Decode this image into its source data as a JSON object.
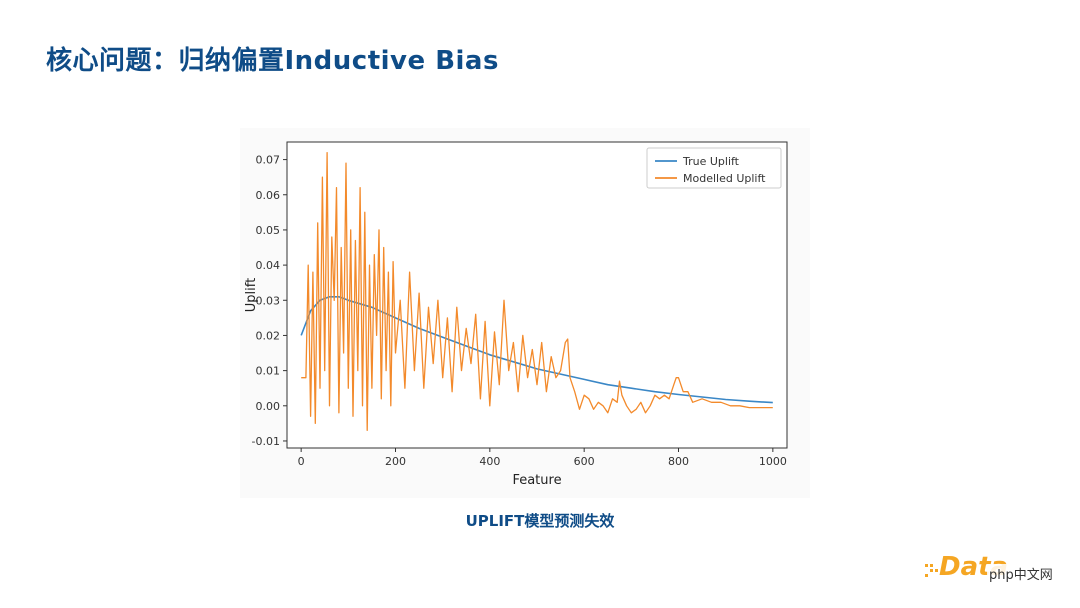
{
  "slide": {
    "title": "核心问题：归纳偏置Inductive Bias",
    "caption": "UPLIFT模型预测失效"
  },
  "brand": {
    "logo_text": "Data",
    "watermark_text": "php中文网"
  },
  "colors": {
    "title": "#0f4c87",
    "true_uplift": "#3a87c6",
    "modelled_uplift": "#f38a2b",
    "brand": "#f5a623"
  },
  "chart_data": {
    "type": "line",
    "xlabel": "Feature",
    "ylabel": "Uplift",
    "xlim": [
      -30,
      1030
    ],
    "ylim": [
      -0.012,
      0.075
    ],
    "xticks": [
      0,
      200,
      400,
      600,
      800,
      1000
    ],
    "yticks": [
      -0.01,
      0.0,
      0.01,
      0.02,
      0.03,
      0.04,
      0.05,
      0.06,
      0.07
    ],
    "ytick_labels": [
      "-0.01",
      "0.00",
      "0.01",
      "0.02",
      "0.03",
      "0.04",
      "0.05",
      "0.06",
      "0.07"
    ],
    "grid": false,
    "legend_position": "top-right",
    "series": [
      {
        "name": "True Uplift",
        "color": "#3a87c6",
        "x": [
          0,
          20,
          40,
          60,
          80,
          100,
          150,
          200,
          250,
          300,
          350,
          400,
          450,
          500,
          550,
          600,
          650,
          700,
          750,
          800,
          850,
          900,
          950,
          1000
        ],
        "y": [
          0.02,
          0.027,
          0.03,
          0.031,
          0.031,
          0.03,
          0.028,
          0.025,
          0.022,
          0.0195,
          0.017,
          0.0145,
          0.0125,
          0.0105,
          0.009,
          0.0075,
          0.006,
          0.005,
          0.004,
          0.0032,
          0.0025,
          0.0018,
          0.0013,
          0.0009
        ]
      },
      {
        "name": "Modelled Uplift",
        "color": "#f38a2b",
        "x": [
          0,
          10,
          15,
          20,
          25,
          30,
          35,
          40,
          45,
          50,
          55,
          60,
          65,
          70,
          75,
          80,
          85,
          90,
          95,
          100,
          105,
          110,
          115,
          120,
          125,
          130,
          135,
          140,
          145,
          150,
          155,
          160,
          165,
          170,
          175,
          180,
          185,
          190,
          195,
          200,
          210,
          220,
          230,
          240,
          250,
          260,
          270,
          280,
          290,
          300,
          310,
          320,
          330,
          340,
          350,
          360,
          370,
          380,
          390,
          400,
          410,
          420,
          430,
          440,
          450,
          460,
          470,
          480,
          490,
          500,
          510,
          520,
          530,
          540,
          550,
          560,
          565,
          570,
          580,
          590,
          600,
          610,
          620,
          630,
          640,
          650,
          660,
          670,
          675,
          680,
          690,
          700,
          710,
          720,
          730,
          740,
          750,
          760,
          770,
          780,
          790,
          795,
          800,
          810,
          820,
          830,
          850,
          870,
          890,
          910,
          930,
          950,
          970,
          1000
        ],
        "y": [
          0.008,
          0.008,
          0.04,
          -0.003,
          0.038,
          -0.005,
          0.052,
          0.005,
          0.065,
          0.01,
          0.072,
          0.0,
          0.048,
          0.03,
          0.062,
          -0.002,
          0.045,
          0.015,
          0.069,
          0.005,
          0.05,
          -0.003,
          0.047,
          0.01,
          0.062,
          0.0,
          0.055,
          -0.007,
          0.04,
          0.005,
          0.043,
          0.02,
          0.05,
          0.002,
          0.045,
          0.01,
          0.038,
          0.0,
          0.041,
          0.015,
          0.03,
          0.005,
          0.038,
          0.01,
          0.032,
          0.005,
          0.028,
          0.012,
          0.03,
          0.008,
          0.025,
          0.004,
          0.028,
          0.01,
          0.022,
          0.012,
          0.026,
          0.002,
          0.024,
          0.0,
          0.021,
          0.006,
          0.03,
          0.01,
          0.018,
          0.004,
          0.02,
          0.008,
          0.016,
          0.006,
          0.018,
          0.004,
          0.014,
          0.008,
          0.01,
          0.018,
          0.019,
          0.008,
          0.004,
          -0.001,
          0.003,
          0.002,
          -0.001,
          0.001,
          0.0,
          -0.002,
          0.002,
          0.001,
          0.007,
          0.003,
          0.0,
          -0.002,
          -0.001,
          0.001,
          -0.002,
          0.0,
          0.003,
          0.002,
          0.003,
          0.002,
          0.006,
          0.008,
          0.008,
          0.004,
          0.004,
          0.001,
          0.002,
          0.001,
          0.001,
          0.0,
          0.0,
          -0.0005,
          -0.0005,
          -0.0005
        ]
      }
    ]
  }
}
